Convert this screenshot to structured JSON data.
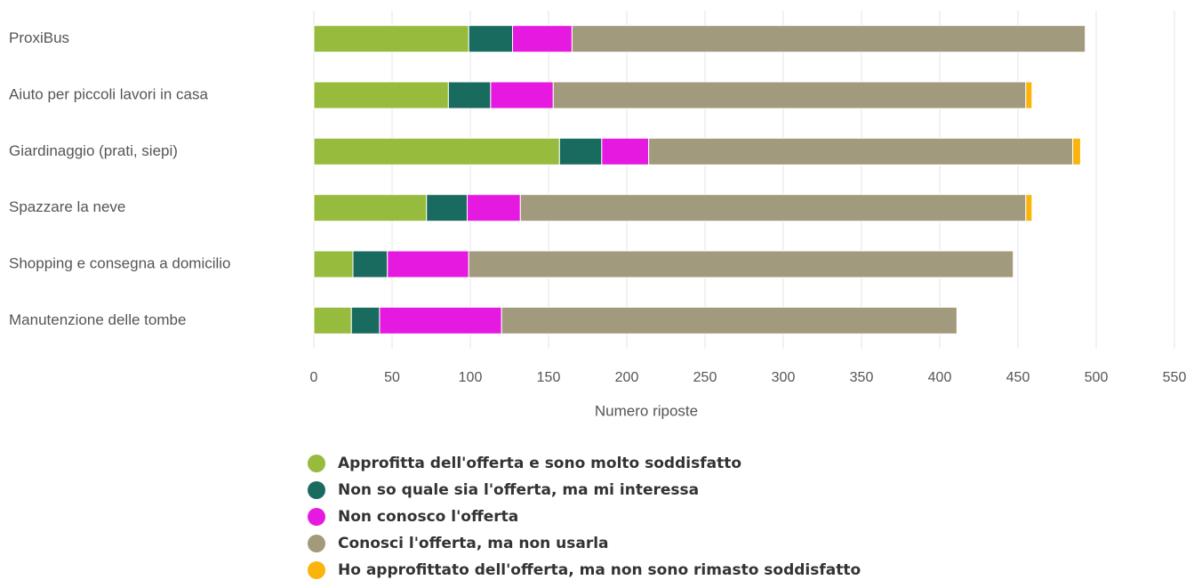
{
  "chart_data": {
    "type": "bar",
    "orientation": "horizontal",
    "stacked": true,
    "categories": [
      "ProxiBus",
      "Aiuto per piccoli lavori in casa",
      "Giardinaggio (prati, siepi)",
      "Spazzare la neve",
      "Shopping e consegna a domicilio",
      "Manutenzione delle tombe"
    ],
    "series": [
      {
        "name": "Approfitta dell'offerta e sono molto soddisfatto",
        "color": "#97bb3c",
        "values": [
          99,
          86,
          157,
          72,
          25,
          24
        ]
      },
      {
        "name": "Non so quale sia l'offerta, ma mi interessa",
        "color": "#1a6b5f",
        "values": [
          28,
          27,
          27,
          26,
          22,
          18
        ]
      },
      {
        "name": "Non conosco l'offerta",
        "color": "#e619e0",
        "values": [
          38,
          40,
          30,
          34,
          52,
          78
        ]
      },
      {
        "name": "Conosci l'offerta, ma non usarla",
        "color": "#a29a7c",
        "values": [
          328,
          302,
          271,
          323,
          348,
          291
        ]
      },
      {
        "name": "Ho approfittato dell'offerta, ma non sono rimasto soddisfatto",
        "color": "#fbb40b",
        "values": [
          0,
          4,
          5,
          4,
          0,
          0
        ]
      }
    ],
    "x_label": "Numero riposte",
    "xlim": [
      0,
      550
    ],
    "xticks": [
      0,
      50,
      100,
      150,
      200,
      250,
      300,
      350,
      400,
      450,
      500,
      550
    ],
    "grid": true,
    "legend": "bottom"
  }
}
